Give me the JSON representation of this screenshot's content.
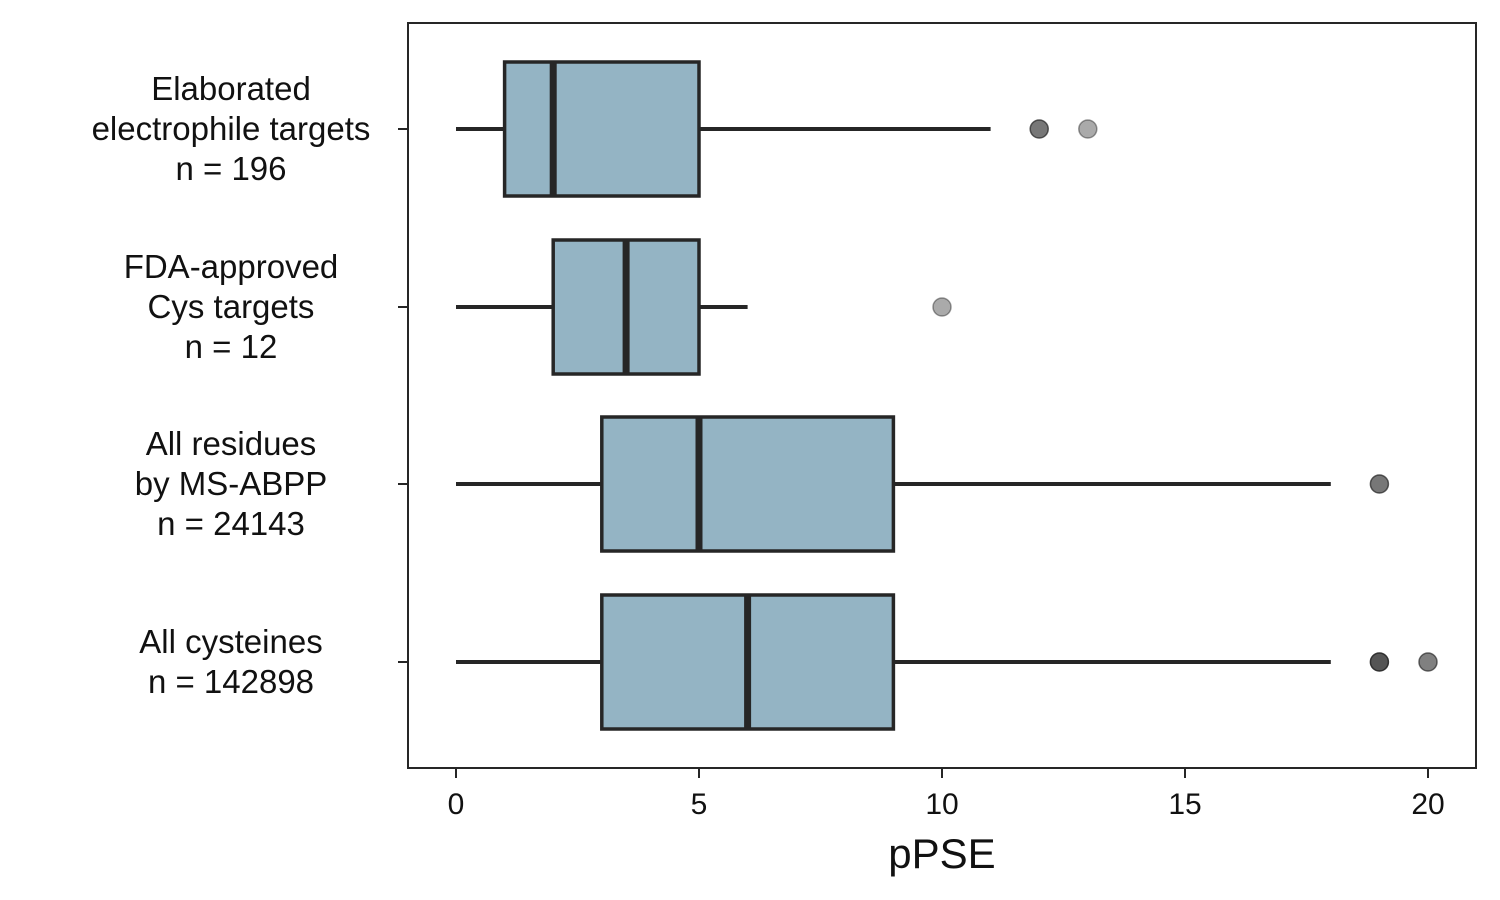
{
  "chart_data": {
    "type": "boxplot",
    "orientation": "horizontal",
    "title": "",
    "xlabel": "pPSE",
    "ylabel": "",
    "xlim": [
      -1,
      21
    ],
    "xticks": [
      0,
      5,
      10,
      15,
      20
    ],
    "grid": false,
    "colors": {
      "box_fill": "#94b4c4",
      "line": "#262626",
      "outlier": "#555555",
      "frame": "#262626"
    },
    "categories": [
      {
        "label_lines": [
          "Elaborated",
          "electrophile targets",
          "n = 196"
        ],
        "n": 196,
        "whisker_low": 0,
        "q1": 1,
        "median": 2,
        "q3": 5,
        "whisker_high": 11,
        "outliers": [
          {
            "value": 12,
            "opacity": 0.8
          },
          {
            "value": 13,
            "opacity": 0.5
          }
        ]
      },
      {
        "label_lines": [
          "FDA-approved",
          "Cys targets",
          "n = 12"
        ],
        "n": 12,
        "whisker_low": 0,
        "q1": 2,
        "median": 3.5,
        "q3": 5,
        "whisker_high": 6,
        "outliers": [
          {
            "value": 10,
            "opacity": 0.5
          }
        ]
      },
      {
        "label_lines": [
          "All residues",
          "by MS-ABPP",
          "n = 24143"
        ],
        "n": 24143,
        "whisker_low": 0,
        "q1": 3,
        "median": 5,
        "q3": 9,
        "whisker_high": 18,
        "outliers": [
          {
            "value": 19,
            "opacity": 0.8
          }
        ]
      },
      {
        "label_lines": [
          "All cysteines",
          "n = 142898"
        ],
        "n": 142898,
        "whisker_low": 0,
        "q1": 3,
        "median": 6,
        "q3": 9,
        "whisker_high": 18,
        "outliers": [
          {
            "value": 19,
            "opacity": 1.0
          },
          {
            "value": 20,
            "opacity": 0.75
          }
        ]
      }
    ]
  }
}
